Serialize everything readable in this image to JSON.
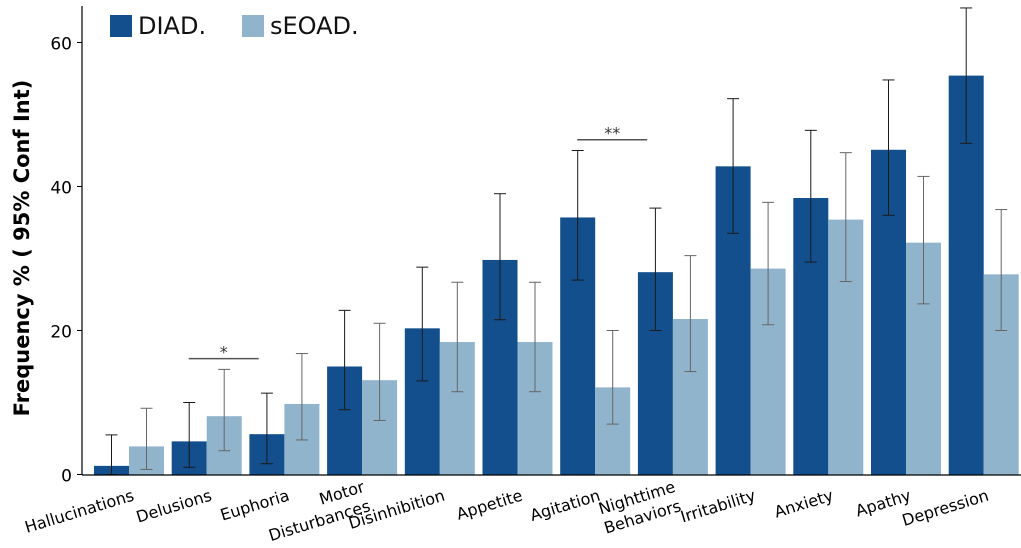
{
  "chart_data": {
    "type": "bar",
    "title": "",
    "xlabel": "",
    "ylabel": "Frequency % ( 95% Conf Int)",
    "ylim": [
      0,
      65
    ],
    "yticks": [
      0,
      20,
      40,
      60
    ],
    "legend_position": "top-left",
    "categories": [
      "Hallucinations",
      "Delusions",
      "Euphoria",
      "Motor\nDisturbances",
      "Disinhibition",
      "Appetite",
      "Agitation",
      "Nighttime\nBehaviors",
      "Irritability",
      "Anxiety",
      "Apathy",
      "Depression"
    ],
    "series": [
      {
        "name": "DIAD.",
        "color": "#124f8c",
        "values": [
          1.2,
          4.6,
          5.6,
          15.0,
          20.3,
          29.8,
          35.7,
          28.1,
          42.8,
          38.4,
          45.1,
          55.4
        ],
        "ci_low": [
          0.0,
          1.0,
          1.5,
          9.0,
          13.0,
          21.5,
          27.0,
          20.0,
          33.5,
          29.5,
          36.0,
          46.0
        ],
        "ci_high": [
          5.5,
          10.0,
          11.3,
          22.8,
          28.8,
          39.0,
          45.0,
          37.0,
          52.2,
          47.8,
          54.8,
          64.8
        ]
      },
      {
        "name": "sEOAD.",
        "color": "#8fb4cc",
        "values": [
          3.9,
          8.1,
          9.8,
          13.1,
          18.4,
          18.4,
          12.1,
          21.6,
          28.6,
          35.4,
          32.2,
          27.8
        ],
        "ci_low": [
          0.7,
          3.3,
          4.8,
          7.5,
          11.5,
          11.5,
          7.0,
          14.3,
          20.8,
          26.8,
          23.7,
          20.0
        ],
        "ci_high": [
          9.2,
          14.6,
          16.8,
          21.0,
          26.7,
          26.7,
          20.0,
          30.4,
          37.8,
          44.7,
          41.4,
          36.8
        ]
      }
    ],
    "annotations": [
      {
        "category": "Delusions",
        "text": "*"
      },
      {
        "category": "Agitation",
        "text": "**"
      }
    ]
  }
}
